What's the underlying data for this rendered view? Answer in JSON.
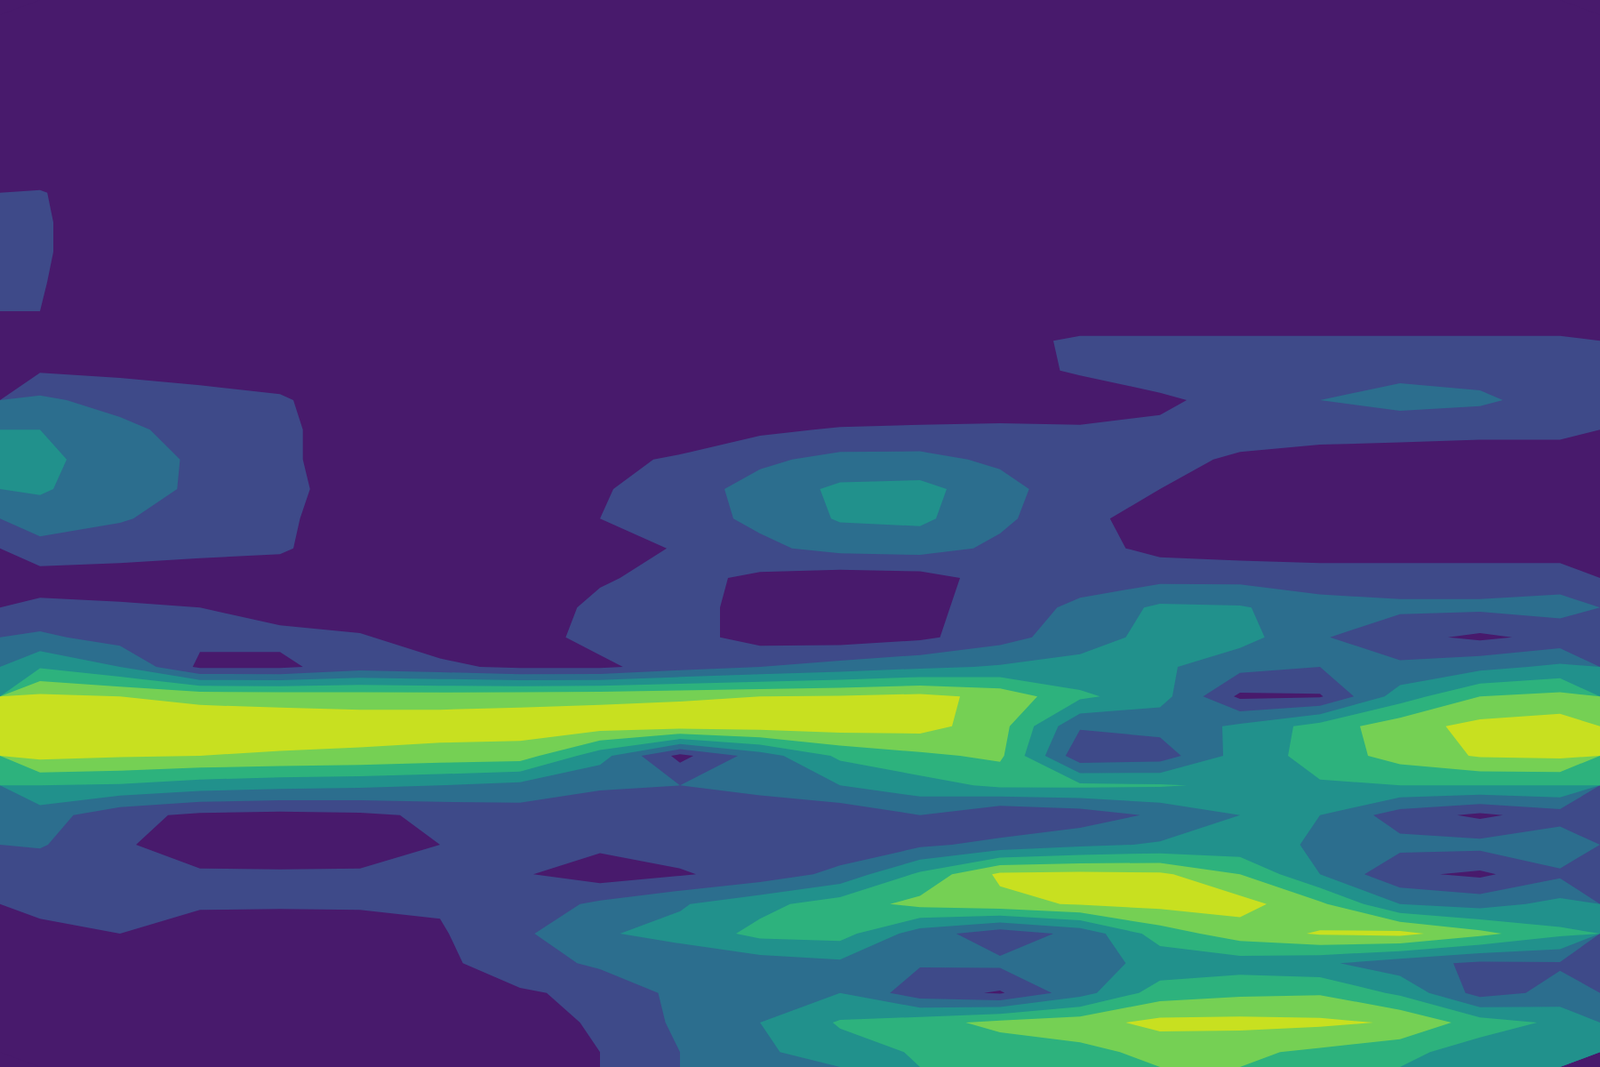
{
  "chart_data": {
    "type": "contour",
    "levels": [
      0,
      1,
      2,
      3,
      4,
      5,
      6
    ],
    "colors": [
      "#481a6c",
      "#3e4a89",
      "#2c6e8e",
      "#21918c",
      "#2db27d",
      "#75d054",
      "#c8e020"
    ],
    "tick_labels": false,
    "z": [
      [
        0,
        0,
        0,
        0,
        0,
        0,
        0,
        0,
        0,
        0,
        0,
        0,
        0,
        0,
        0,
        0,
        0,
        0,
        0,
        0
      ],
      [
        0,
        0,
        0,
        0,
        0,
        0,
        0,
        0,
        0,
        0,
        0,
        0,
        0,
        0,
        0,
        0,
        0,
        0,
        0,
        0
      ],
      [
        0,
        0,
        0,
        0,
        0,
        0,
        0,
        0,
        0,
        0,
        0,
        0,
        0,
        0,
        0,
        0,
        0,
        0,
        0,
        0
      ],
      [
        0,
        0,
        0,
        0,
        0,
        0,
        0,
        0,
        0,
        0,
        0,
        0,
        0,
        0,
        0,
        0,
        0,
        0,
        0,
        0
      ],
      [
        0,
        0,
        0,
        0,
        0,
        0,
        0,
        0,
        0,
        0,
        0,
        0,
        0,
        0,
        0,
        0,
        0,
        0,
        0,
        0
      ],
      [
        0,
        0,
        0,
        0,
        0,
        0,
        0,
        0,
        0,
        0,
        0,
        0,
        0,
        0,
        0,
        0,
        0,
        0,
        0,
        0
      ],
      [
        1.1,
        0,
        0,
        0,
        0,
        0,
        0,
        0,
        0,
        0,
        0,
        0,
        0,
        0,
        0,
        0,
        0,
        0,
        0,
        0
      ],
      [
        1.2,
        0,
        0,
        0,
        0,
        0,
        0,
        0,
        0,
        0,
        0,
        0,
        0,
        0,
        0,
        0,
        0,
        0,
        0,
        0
      ],
      [
        1.2,
        0,
        0,
        0,
        0,
        0,
        0,
        0,
        0,
        0,
        0,
        0,
        0,
        0,
        0,
        0,
        0,
        0,
        0,
        0
      ],
      [
        1.1,
        0,
        0,
        0,
        0,
        0,
        0,
        0,
        0,
        0,
        0,
        0,
        0,
        0,
        0,
        0,
        0,
        0,
        0,
        0
      ],
      [
        1.0,
        0,
        0,
        0,
        0,
        0,
        0,
        0,
        0,
        0,
        0,
        0,
        0,
        0,
        0,
        0,
        0,
        0,
        0,
        0
      ],
      [
        0.4,
        0,
        0,
        0,
        0,
        0,
        0,
        0,
        0,
        0,
        0,
        0,
        0.6,
        1.2,
        1.2,
        1.2,
        1.2,
        1.2,
        1.2,
        1.2
      ],
      [
        0.9,
        0.8,
        0.8,
        0.6,
        0,
        0,
        0,
        0,
        0,
        0,
        0,
        0,
        0.7,
        1.1,
        1.3,
        1.4,
        1.6,
        1.7,
        1.6,
        1.4
      ],
      [
        2.2,
        1.6,
        1.2,
        1.1,
        0.5,
        0,
        0,
        0,
        0,
        0,
        0,
        0,
        0.3,
        0.5,
        0.9,
        1.2,
        2.0,
        2.4,
        2.2,
        1.5
      ],
      [
        3.0,
        2.3,
        1.5,
        1.2,
        0.5,
        0,
        0,
        0,
        0,
        0.8,
        1.1,
        1.2,
        1.2,
        1.1,
        1.1,
        1.3,
        1.4,
        1.3,
        1.2,
        1.2
      ],
      [
        3.2,
        2.6,
        1.8,
        1.2,
        0.5,
        0,
        0,
        0.6,
        1.2,
        1.8,
        2.3,
        2.3,
        1.8,
        1.4,
        1.2,
        0.9,
        0.6,
        0.6,
        0.6,
        0.6
      ],
      [
        3.1,
        2.5,
        1.8,
        1.3,
        0.5,
        0,
        0,
        0.9,
        1.5,
        2.4,
        3.2,
        3.3,
        2.4,
        1.3,
        1.0,
        0.6,
        0.4,
        0.4,
        0.4,
        0.4
      ],
      [
        2.6,
        2.1,
        1.5,
        1.2,
        0.4,
        0,
        0,
        1.0,
        1.6,
        2.2,
        3.1,
        3.2,
        2.2,
        1.3,
        0.5,
        0.4,
        0.4,
        0.4,
        0.4,
        0.4
      ],
      [
        1.6,
        1.4,
        1.2,
        1.1,
        0.5,
        0,
        0,
        0.5,
        1.1,
        1.8,
        2.3,
        2.4,
        1.8,
        1.4,
        0.7,
        0.5,
        0.5,
        0.5,
        0.5,
        0.5
      ],
      [
        0.6,
        0.6,
        0.6,
        0.6,
        0.6,
        0,
        0,
        0.9,
        1.3,
        0.8,
        0.5,
        0.6,
        1.4,
        1.6,
        1.7,
        1.7,
        1.5,
        1.5,
        1.5,
        1.5
      ],
      [
        1.2,
        1.1,
        1.0,
        0.7,
        0.4,
        0.3,
        0.5,
        1.2,
        1.4,
        0.6,
        0.4,
        0.7,
        1.5,
        2.2,
        3.2,
        3.1,
        2.4,
        2.2,
        2.2,
        2.4
      ],
      [
        2.2,
        1.6,
        1.2,
        1.2,
        1.1,
        0.5,
        0.6,
        1.3,
        1.4,
        0.6,
        0.5,
        0.8,
        1.6,
        2.6,
        3.3,
        3.4,
        2.1,
        1.3,
        0.8,
        1.3
      ],
      [
        3.9,
        3.0,
        0.8,
        0.8,
        1.5,
        1.2,
        0.8,
        0.8,
        1.5,
        2.0,
        2.4,
        2.8,
        3.1,
        3.3,
        3.2,
        2.3,
        2.0,
        2.2,
        2.7,
        3.2
      ],
      [
        6.2,
        6.0,
        5.8,
        5.7,
        5.6,
        5.6,
        5.7,
        5.8,
        5.9,
        6.0,
        6.1,
        6.3,
        5.7,
        4.2,
        3.4,
        0.8,
        0.9,
        3.5,
        5.0,
        5.3
      ],
      [
        6.5,
        6.5,
        6.5,
        6.5,
        6.5,
        6.5,
        6.5,
        6.5,
        6.5,
        6.5,
        6.5,
        6.4,
        5.4,
        2.1,
        2.3,
        3.2,
        4.4,
        5.6,
        6.3,
        6.5
      ],
      [
        6.3,
        6.1,
        6.0,
        5.9,
        5.8,
        5.6,
        5.5,
        3.4,
        0.7,
        2.5,
        4.2,
        4.8,
        5.2,
        1.3,
        1.5,
        3.4,
        4.4,
        5.4,
        6.1,
        6.2
      ],
      [
        4.0,
        3.9,
        3.5,
        3.3,
        3.2,
        3.0,
        2.7,
        2.1,
        2.0,
        2.5,
        3.0,
        3.6,
        4.2,
        4.2,
        4.1,
        3.8,
        3.9,
        4.0,
        4.0,
        4.0
      ],
      [
        2.5,
        1.3,
        0.8,
        0.7,
        0.8,
        1.2,
        1.5,
        1.5,
        1.4,
        1.0,
        1.3,
        2.0,
        1.0,
        1.4,
        2.2,
        3.0,
        3.0,
        1.5,
        0.8,
        1.5
      ],
      [
        2.1,
        1.1,
        0.6,
        0.5,
        0.6,
        1.0,
        1.1,
        1.2,
        1.4,
        1.3,
        1.3,
        1.8,
        2.3,
        2.8,
        3.1,
        3.3,
        2.9,
        2.3,
        2.3,
        2.8
      ],
      [
        1.3,
        1.1,
        1.1,
        1.1,
        1.1,
        1.1,
        1.1,
        0.5,
        0.9,
        1.4,
        2.3,
        4.2,
        6.2,
        6.3,
        6.2,
        5.0,
        3.0,
        1.2,
        0.8,
        1.8
      ],
      [
        1.1,
        1.1,
        1.1,
        1.1,
        1.1,
        1.1,
        1.4,
        2.2,
        2.9,
        3.7,
        4.5,
        5.3,
        5.7,
        6.1,
        6.3,
        6.4,
        5.2,
        3.0,
        2.6,
        3.3
      ],
      [
        0.9,
        1.0,
        0.6,
        0.5,
        0.6,
        0.9,
        1.8,
        2.9,
        3.3,
        4.3,
        4.4,
        2.5,
        1.4,
        2.3,
        4.5,
        5.5,
        6.1,
        6.3,
        5.3,
        4.2
      ],
      [
        1.0,
        0.8,
        0.6,
        0.4,
        0.5,
        0.8,
        1.5,
        2.2,
        2.4,
        2.5,
        2.8,
        2.1,
        2.2,
        2.6,
        3.3,
        3.5,
        3.2,
        2.4,
        1.8,
        1.9
      ],
      [
        0.8,
        0.6,
        0.4,
        0.4,
        0.4,
        0.7,
        0.9,
        1.2,
        2.3,
        2.8,
        3.0,
        1.4,
        0.9,
        2.6,
        4.5,
        4.8,
        4.9,
        3.8,
        1.6,
        2.3
      ],
      [
        0.3,
        0.6,
        0.8,
        0.4,
        0.3,
        0.5,
        0.7,
        1.1,
        2.2,
        3.0,
        4.1,
        4.6,
        5.3,
        5.6,
        6.3,
        6.3,
        6.2,
        5.9,
        4.5,
        3.8
      ],
      [
        0.2,
        0.3,
        0.3,
        0.3,
        0.3,
        0.3,
        0.6,
        1.0,
        2.0,
        2.8,
        3.6,
        4.1,
        4.4,
        4.7,
        5.3,
        5.2,
        4.8,
        4.3,
        3.5,
        3.0
      ]
    ]
  }
}
